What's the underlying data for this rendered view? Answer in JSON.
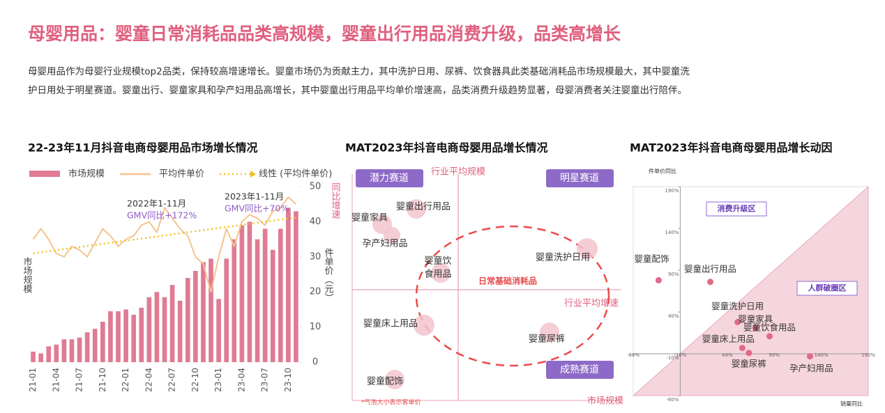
{
  "title": "母婴用品：婴童日常消耗品品类高规模，婴童出行用品消费升级，品类高增长",
  "description": [
    "母婴用品作为母婴行业规模top2品类，保持较高增速增长。婴童市场仍为贡献主力，其中洗护日用、尿裤、饮食器具此类基础消耗品市场规模最大，其中婴童洗",
    "护日用处于明星赛道。婴童出行、婴童家具和孕产妇用品高增长，其中婴童出行用品平均单价增速高，品类消费升级趋势显著，母婴消费者关注婴童出行陪伴。"
  ],
  "chart_data": [
    {
      "type": "bar-line",
      "title": "22-23年11月抖音电商母婴用品市场增长情况",
      "ylabel": "市场规模",
      "y2label": "件单价（元）",
      "categories": [
        "21-01",
        null,
        null,
        "21-04",
        null,
        null,
        "21-07",
        null,
        null,
        "21-10",
        null,
        null,
        "22-01",
        null,
        null,
        "22-04",
        null,
        null,
        "22-07",
        null,
        null,
        "22-10",
        null,
        null,
        "23-01",
        null,
        null,
        "23-04",
        null,
        null,
        "23-07",
        null,
        null,
        "23-10",
        null
      ],
      "ylim": [
        0,
        100
      ],
      "y2lim": [
        0,
        50
      ],
      "y2ticks": [
        0,
        10,
        20,
        30,
        40,
        50
      ],
      "series": [
        {
          "name": "市场规模",
          "color": "#e07b93",
          "kind": "bar",
          "values": [
            6,
            5,
            9,
            10,
            13,
            13,
            14,
            17,
            19,
            23,
            29,
            29,
            30,
            27,
            31,
            37,
            40,
            37,
            44,
            35,
            48,
            52,
            57,
            59,
            36,
            59,
            70,
            78,
            80,
            70,
            76,
            64,
            76,
            88,
            86
          ]
        },
        {
          "name": "平均件单价",
          "color": "#f5c38e",
          "kind": "line",
          "axis": "y2",
          "values": [
            35,
            38,
            35,
            31,
            30,
            33,
            32,
            30,
            34,
            38,
            36,
            33,
            35,
            36,
            39,
            40,
            37,
            44,
            41,
            38,
            36,
            30,
            28,
            20,
            30,
            38,
            33,
            40,
            42,
            41,
            39,
            43,
            44,
            47,
            45
          ]
        },
        {
          "name": "线性 (平均件单价)",
          "color": "#f0c020",
          "kind": "trend",
          "axis": "y2",
          "values": [
            31,
            31.3,
            31.6,
            31.9,
            32.2,
            32.5,
            32.8,
            33.1,
            33.4,
            33.7,
            34,
            34.3,
            34.6,
            34.9,
            35.2,
            35.5,
            35.8,
            36.1,
            36.4,
            36.7,
            37,
            37.3,
            37.6,
            37.9,
            38.2,
            38.5,
            38.8,
            39.1,
            39.4,
            39.7,
            40,
            40.3,
            40.6,
            40.9,
            41.2
          ]
        }
      ],
      "annotations": [
        [
          "2022年1-11月",
          "GMV同比+172%"
        ],
        [
          "2023年1-11月",
          "GMV同比+70%"
        ]
      ]
    },
    {
      "type": "scatter",
      "title": "MAT2023年抖音电商母婴用品增长动因",
      "xlabel": "销量同比",
      "ylabel": "件单价同比",
      "xlim": [
        -60,
        190
      ],
      "ylim": [
        -60,
        190
      ],
      "xticks": [
        {
          "value": -60,
          "label": "-60%"
        },
        {
          "value": -10,
          "label": "-10%"
        },
        {
          "value": 40,
          "label": "40%"
        },
        {
          "value": 90,
          "label": "90%"
        },
        {
          "value": 140,
          "label": "140%"
        },
        {
          "value": 190,
          "label": "190%"
        }
      ],
      "yticks": [
        {
          "value": -60,
          "label": "-60%"
        },
        {
          "value": -10,
          "label": "-10%"
        },
        {
          "value": 40,
          "label": "40%"
        },
        {
          "value": 90,
          "label": "90%"
        },
        {
          "value": 140,
          "label": "140%"
        },
        {
          "value": 190,
          "label": "190%"
        }
      ],
      "color": "#e06a86",
      "regions": [
        "消费升级区",
        "人群破圈区"
      ],
      "labels": [
        "婴童配饰",
        "婴童出行用品",
        "婴童洗护日用",
        "婴童家具",
        "婴童饮食用品",
        "婴童床上用品",
        "婴童尿裤",
        "孕产妇用品"
      ],
      "x": [
        -33,
        22,
        51,
        70,
        85,
        56,
        63,
        128
      ],
      "values": [
        78,
        76,
        28,
        21,
        11,
        -3,
        -9,
        -13
      ]
    }
  ],
  "quadrant_diagram": {
    "title": "MAT2023年抖音电商母婴用品增长情况",
    "y_axis": "同比增速",
    "x_axis": "市场规模",
    "v_ref": "行业平均规模",
    "h_ref": "行业平均增速",
    "quadrants": [
      "潜力赛道",
      "明星赛道",
      "成熟赛道"
    ],
    "cluster": "日常基础消耗品",
    "note": "*气泡大小表示客单价",
    "bubbles": [
      [
        "婴童出行用品"
      ],
      [
        "婴童家具"
      ],
      [
        "孕产妇用品"
      ],
      [
        "婴童饮",
        "食用品"
      ],
      [
        "婴童洗护日用"
      ],
      [
        "婴童床上用品"
      ],
      [
        "婴童尿裤"
      ],
      [
        "婴童配饰"
      ]
    ]
  }
}
